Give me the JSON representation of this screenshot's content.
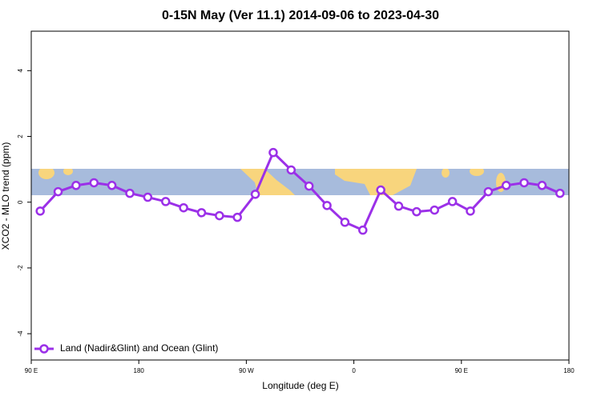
{
  "chart_data": {
    "type": "line",
    "title": "0-15N May (Ver 11.1)   2014-09-06 to 2023-04-30",
    "xlabel": "Longitude (deg E)",
    "ylabel": "XCO2 - MLO trend (ppm)",
    "x": [
      97.5,
      112.5,
      127.5,
      142.5,
      157.5,
      172.5,
      187.5,
      202.5,
      217.5,
      232.5,
      247.5,
      262.5,
      277.5,
      292.5,
      307.5,
      322.5,
      337.5,
      352.5,
      367.5,
      382.5,
      397.5,
      412.5,
      427.5,
      442.5,
      457.5,
      472.5,
      487.5,
      502.5,
      517.5,
      532.5
    ],
    "series": [
      {
        "name": "Land (Nadir&Glint) and Ocean (Glint)",
        "color": "#9b30e8",
        "values": [
          -0.27,
          0.32,
          0.51,
          0.59,
          0.51,
          0.27,
          0.15,
          0.02,
          -0.17,
          -0.32,
          -0.41,
          -0.46,
          0.24,
          1.51,
          0.98,
          0.49,
          -0.1,
          -0.61,
          -0.85,
          0.37,
          -0.12,
          -0.29,
          -0.24,
          0.02,
          -0.27,
          0.32,
          0.51,
          0.59,
          0.51,
          0.27
        ]
      }
    ],
    "xlim": [
      90,
      540
    ],
    "ylim": [
      -4.8,
      5.2
    ],
    "xticks": [
      {
        "value": 90,
        "label": "90 E"
      },
      {
        "value": 180,
        "label": "180"
      },
      {
        "value": 270,
        "label": "90 W"
      },
      {
        "value": 360,
        "label": "0"
      },
      {
        "value": 450,
        "label": "90 E"
      },
      {
        "value": 540,
        "label": "180"
      }
    ],
    "yticks": [
      4,
      2,
      0,
      -2,
      -4
    ],
    "legend": "bottom left"
  }
}
